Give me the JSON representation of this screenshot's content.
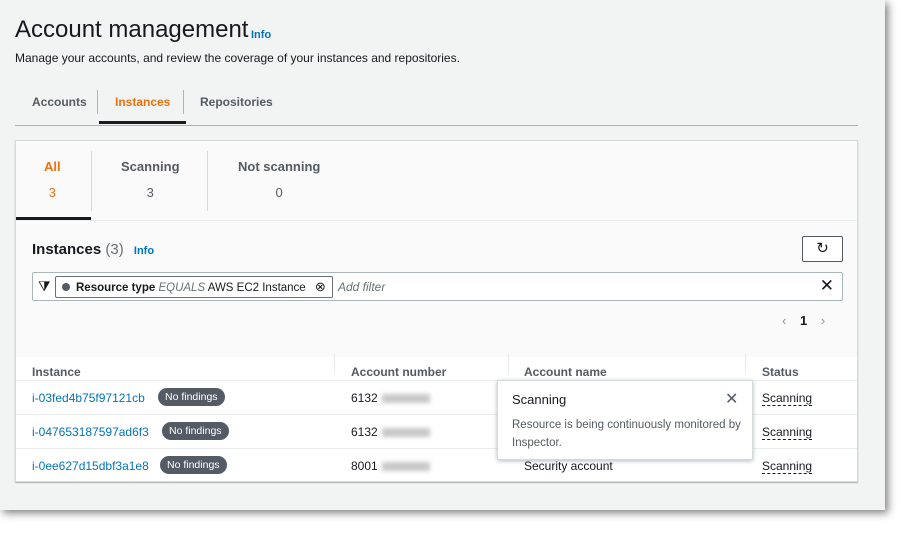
{
  "header": {
    "title": "Account management",
    "info": "Info",
    "description": "Manage your accounts, and review the coverage of your instances and repositories."
  },
  "tabs": [
    {
      "label": "Accounts"
    },
    {
      "label": "Instances",
      "active": true
    },
    {
      "label": "Repositories"
    }
  ],
  "counters": [
    {
      "label": "All",
      "value": "3",
      "active": true
    },
    {
      "label": "Scanning",
      "value": "3"
    },
    {
      "label": "Not scanning",
      "value": "0"
    }
  ],
  "instances": {
    "title": "Instances",
    "count": "(3)",
    "info": "Info",
    "refresh_icon": "refresh-icon",
    "filter": {
      "property": "Resource type",
      "operator": "EQUALS",
      "value": "AWS EC2 Instance",
      "placeholder": "Add filter"
    },
    "pagination": {
      "page": "1"
    },
    "columns": [
      "Instance",
      "Account number",
      "Account name",
      "Status"
    ],
    "rows": [
      {
        "instance": "i-03fed4b75f97121cb",
        "badge": "No findings",
        "account_number": "6132",
        "account_name": "",
        "status": "Scanning"
      },
      {
        "instance": "i-047653187597ad6f3",
        "badge": "No findings",
        "account_number": "6132",
        "account_name": "",
        "status": "Scanning"
      },
      {
        "instance": "i-0ee627d15dbf3a1e8",
        "badge": "No findings",
        "account_number": "8001",
        "account_name": "Security account",
        "status": "Scanning"
      }
    ]
  },
  "popover": {
    "title": "Scanning",
    "body": "Resource is being continuously monitored by Inspector."
  },
  "colors": {
    "accent": "#ec7211",
    "link": "#0073bb",
    "badge": "#545b64"
  }
}
